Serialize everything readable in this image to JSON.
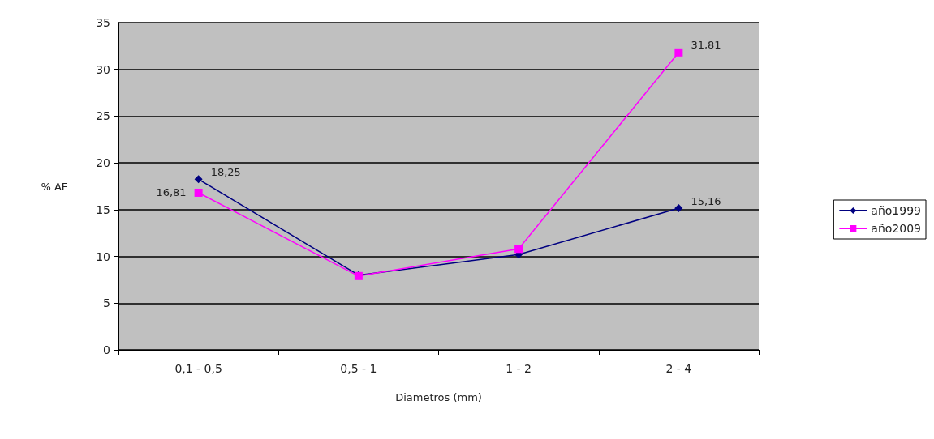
{
  "chart_data": {
    "type": "line",
    "xlabel": "Diametros (mm)",
    "ylabel": "% AE",
    "categories": [
      "0,1 - 0,5",
      "0,5 - 1",
      "1 - 2",
      "2 - 4"
    ],
    "series": [
      {
        "name": "año1999",
        "color": "#000080",
        "marker": "diamond",
        "values": [
          18.25,
          8.0,
          10.2,
          15.16
        ],
        "value_labels": [
          "18,25",
          null,
          null,
          "15,16"
        ]
      },
      {
        "name": "año2009",
        "color": "#ff00ff",
        "marker": "square",
        "values": [
          16.81,
          7.9,
          10.8,
          31.81
        ],
        "value_labels": [
          "16,81",
          null,
          null,
          "31,81"
        ]
      }
    ],
    "ylim": [
      0,
      35
    ],
    "yticks": [
      0,
      5,
      10,
      15,
      20,
      25,
      30,
      35
    ],
    "grid": "y",
    "legend": "right"
  }
}
